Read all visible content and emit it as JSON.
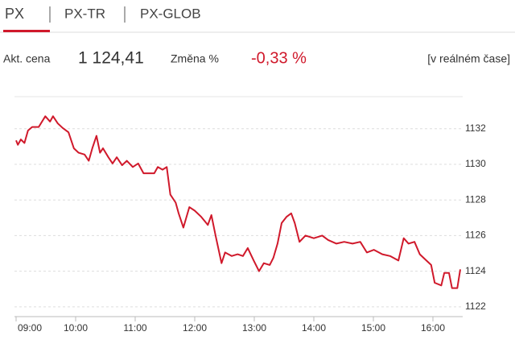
{
  "tabs": [
    "PX",
    "PX-TR",
    "PX-GLOB"
  ],
  "quote": {
    "price_label": "Akt. cena",
    "price": "1 124,41",
    "change_label": "Změna %",
    "change": "-0,33 %",
    "realtime": "[v reálném čase]"
  },
  "chart_data": {
    "type": "line",
    "x": [
      9.0,
      9.03,
      9.08,
      9.14,
      9.2,
      9.27,
      9.38,
      9.49,
      9.57,
      9.62,
      9.7,
      9.78,
      9.88,
      9.97,
      10.05,
      10.15,
      10.22,
      10.28,
      10.35,
      10.41,
      10.46,
      10.55,
      10.62,
      10.69,
      10.78,
      10.86,
      10.96,
      11.05,
      11.14,
      11.23,
      11.32,
      11.38,
      11.46,
      11.53,
      11.59,
      11.68,
      11.73,
      11.81,
      11.91,
      12.0,
      12.11,
      12.22,
      12.28,
      12.35,
      12.45,
      12.51,
      12.62,
      12.72,
      12.81,
      12.89,
      12.99,
      13.08,
      13.16,
      13.26,
      13.32,
      13.39,
      13.46,
      13.54,
      13.62,
      13.68,
      13.76,
      13.86,
      14.0,
      14.14,
      14.24,
      14.38,
      14.51,
      14.65,
      14.78,
      14.89,
      15.01,
      15.15,
      15.28,
      15.42,
      15.51,
      15.59,
      15.69,
      15.78,
      15.89,
      15.97,
      16.03,
      16.14,
      16.19,
      16.27,
      16.32,
      16.41,
      16.46
    ],
    "series": [
      {
        "color": "#d0192b",
        "values": [
          1131.35,
          1131.1,
          1131.4,
          1131.2,
          1131.9,
          1132.1,
          1132.1,
          1132.7,
          1132.4,
          1132.7,
          1132.3,
          1132.05,
          1131.8,
          1130.9,
          1130.65,
          1130.55,
          1130.2,
          1130.9,
          1131.6,
          1130.65,
          1130.9,
          1130.4,
          1130.05,
          1130.4,
          1129.95,
          1130.2,
          1129.85,
          1130.05,
          1129.5,
          1129.5,
          1129.5,
          1129.85,
          1129.7,
          1129.85,
          1128.3,
          1127.85,
          1127.25,
          1126.45,
          1127.6,
          1127.4,
          1127.05,
          1126.6,
          1127.15,
          1126.0,
          1124.45,
          1125.05,
          1124.85,
          1124.95,
          1124.85,
          1125.3,
          1124.6,
          1124.0,
          1124.45,
          1124.35,
          1124.75,
          1125.55,
          1126.7,
          1127.05,
          1127.25,
          1126.7,
          1125.65,
          1126.0,
          1125.85,
          1126.0,
          1125.75,
          1125.55,
          1125.65,
          1125.55,
          1125.65,
          1125.05,
          1125.2,
          1124.95,
          1124.85,
          1124.6,
          1125.85,
          1125.55,
          1125.65,
          1124.95,
          1124.6,
          1124.35,
          1123.35,
          1123.2,
          1123.9,
          1123.9,
          1123.05,
          1123.05,
          1124.1
        ]
      }
    ],
    "xlim": [
      9,
      16.5
    ],
    "xticks": [
      {
        "value": 9,
        "label": "09:00"
      },
      {
        "value": 10,
        "label": "10:00"
      },
      {
        "value": 11,
        "label": "11:00"
      },
      {
        "value": 12,
        "label": "12:00"
      },
      {
        "value": 13,
        "label": "13:00"
      },
      {
        "value": 14,
        "label": "14:00"
      },
      {
        "value": 15,
        "label": "15:00"
      },
      {
        "value": 16,
        "label": "16:00"
      }
    ],
    "ylim": [
      1121.45,
      1133.8
    ],
    "yticks": [
      1122,
      1124,
      1126,
      1128,
      1130,
      1132
    ],
    "grid": true
  }
}
